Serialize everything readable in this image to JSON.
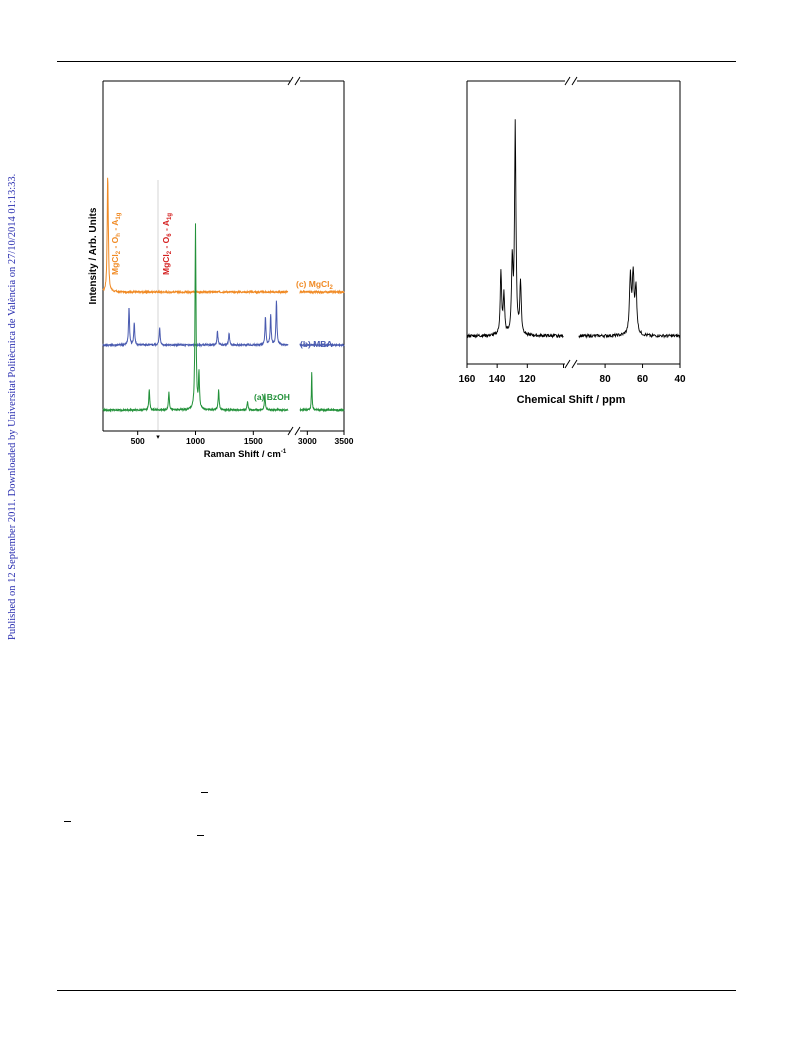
{
  "sidebar": {
    "text": "Published on 12 September 2011. Downloaded by Universitat Politècnica de València on 27/10/2014 01:13:33."
  },
  "chart_data": [
    {
      "type": "line",
      "xlabel": "Raman Shift / cm",
      "xlabel_superscript": "-1",
      "ylabel": "Intensity / Arb. Units",
      "x_ticks": [
        500,
        1000,
        1500,
        3000,
        3500
      ],
      "x_axis_break": [
        1800,
        2900
      ],
      "series": [
        {
          "name": "(c) MgCl",
          "name_subscript": "2",
          "color": "#f08a24",
          "peaks": [
            [
              240,
              100
            ],
            [
              245,
              30
            ]
          ]
        },
        {
          "name": "(b) MBA",
          "color": "#4a5bb0",
          "peaks": [
            [
              425,
              38
            ],
            [
              470,
              22
            ],
            [
              690,
              18
            ],
            [
              1190,
              14
            ],
            [
              1290,
              12
            ],
            [
              1605,
              28
            ],
            [
              1650,
              30
            ],
            [
              1700,
              44
            ]
          ]
        },
        {
          "name": "(a) BzOH",
          "color": "#23913a",
          "peaks": [
            [
              600,
              20
            ],
            [
              770,
              18
            ],
            [
              1000,
              185
            ],
            [
              1030,
              36
            ],
            [
              1200,
              20
            ],
            [
              1450,
              8
            ],
            [
              1600,
              16
            ],
            [
              3060,
              38
            ]
          ]
        }
      ],
      "annotations": [
        {
          "text": "MgCl",
          "sub1": "2",
          "mid": " - O",
          "sub2": "h",
          "end": " - A",
          "sub3": "1g",
          "color": "#f08a24"
        },
        {
          "text": "MgCl",
          "sub1": "2",
          "mid": " - O",
          "sub2": "6",
          "end": " - A",
          "sub3": "1g",
          "color": "#d42020"
        }
      ]
    },
    {
      "type": "line",
      "xlabel": "Chemical Shift / ppm",
      "x_ticks": [
        160,
        140,
        120,
        100,
        80,
        60,
        40
      ],
      "x_tick_labels": [
        "160",
        "140",
        "120",
        "",
        "80",
        "60",
        "40"
      ],
      "x_axis_break": 95,
      "series": [
        {
          "color": "#000000",
          "peaks": [
            [
              137.5,
              62
            ],
            [
              135.5,
              40
            ],
            [
              130,
              72
            ],
            [
              128,
              210
            ],
            [
              124.5,
              52
            ],
            [
              66.5,
              58
            ],
            [
              65,
              58
            ],
            [
              63.5,
              45
            ]
          ]
        }
      ]
    }
  ]
}
